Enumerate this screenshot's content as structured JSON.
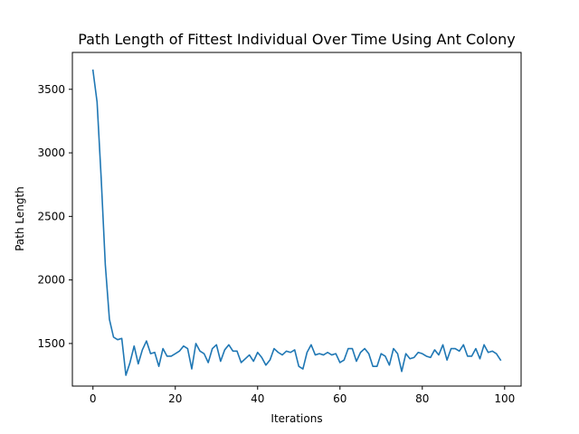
{
  "chart_data": {
    "type": "line",
    "title": "Path Length of Fittest Individual Over Time Using Ant Colony",
    "xlabel": "Iterations",
    "ylabel": "Path Length",
    "xlim": [
      -5,
      104
    ],
    "ylim": [
      1165,
      3790
    ],
    "xticks": [
      0,
      20,
      40,
      60,
      80,
      100
    ],
    "yticks": [
      1500,
      2000,
      2500,
      3000,
      3500
    ],
    "grid": false,
    "legend": "none",
    "series": [
      {
        "color": "#1f77b4",
        "x": [
          0,
          1,
          2,
          3,
          4,
          5,
          6,
          7,
          8,
          9,
          10,
          11,
          12,
          13,
          14,
          15,
          16,
          17,
          18,
          19,
          20,
          21,
          22,
          23,
          24,
          25,
          26,
          27,
          28,
          29,
          30,
          31,
          32,
          33,
          34,
          35,
          36,
          37,
          38,
          39,
          40,
          41,
          42,
          43,
          44,
          45,
          46,
          47,
          48,
          49,
          50,
          51,
          52,
          53,
          54,
          55,
          56,
          57,
          58,
          59,
          60,
          61,
          62,
          63,
          64,
          65,
          66,
          67,
          68,
          69,
          70,
          71,
          72,
          73,
          74,
          75,
          76,
          77,
          78,
          79,
          80,
          81,
          82,
          83,
          84,
          85,
          86,
          87,
          88,
          89,
          90,
          91,
          92,
          93,
          94,
          95,
          96,
          97,
          98,
          99
        ],
        "values": [
          3650,
          3400,
          2800,
          2120,
          1690,
          1550,
          1530,
          1540,
          1250,
          1350,
          1480,
          1340,
          1450,
          1520,
          1420,
          1430,
          1320,
          1460,
          1400,
          1400,
          1420,
          1440,
          1480,
          1460,
          1300,
          1500,
          1440,
          1420,
          1350,
          1460,
          1490,
          1360,
          1450,
          1490,
          1440,
          1440,
          1350,
          1380,
          1410,
          1360,
          1430,
          1390,
          1330,
          1370,
          1460,
          1430,
          1410,
          1440,
          1430,
          1450,
          1320,
          1300,
          1430,
          1490,
          1410,
          1420,
          1410,
          1430,
          1410,
          1420,
          1350,
          1370,
          1460,
          1460,
          1360,
          1430,
          1460,
          1420,
          1320,
          1320,
          1420,
          1400,
          1330,
          1460,
          1420,
          1280,
          1420,
          1380,
          1390,
          1430,
          1420,
          1400,
          1390,
          1450,
          1410,
          1490,
          1370,
          1460,
          1460,
          1440,
          1490,
          1400,
          1400,
          1460,
          1380,
          1490,
          1430,
          1440,
          1420,
          1370
        ]
      }
    ]
  }
}
